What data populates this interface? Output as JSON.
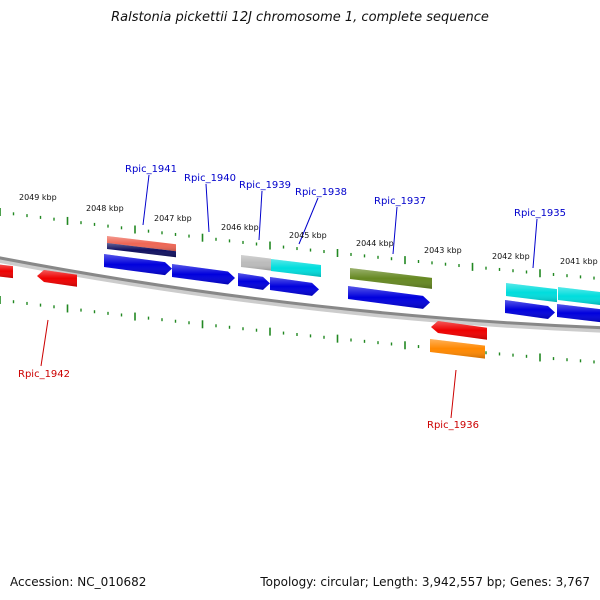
{
  "title": "Ralstonia pickettii 12J chromosome 1, complete sequence",
  "accession": "Accession: NC_010682",
  "summary": "Topology: circular; Length: 3,942,557 bp; Genes: 3,767",
  "colors": {
    "forward_label": "#0000cc",
    "reverse_label": "#cc0000",
    "tick": "#228822",
    "backbone": "#888888",
    "cds_blue": "#0000dd",
    "red": "#ee0000",
    "salmon": "#ee6655",
    "navy": "#101060",
    "gray": "#bbbbbb",
    "cyan": "#00dddd",
    "olive": "#668822",
    "orange": "#ff8800"
  },
  "scale_labels": [
    "2049 kbp",
    "2048 kbp",
    "2047 kbp",
    "2046 kbp",
    "2045 kbp",
    "2044 kbp",
    "2043 kbp",
    "2042 kbp",
    "2041 kbp"
  ],
  "gene_labels": {
    "forward": [
      "Rpic_1941",
      "Rpic_1940",
      "Rpic_1939",
      "Rpic_1938",
      "Rpic_1937",
      "Rpic_1935"
    ],
    "reverse": [
      "Rpic_1942",
      "Rpic_1936"
    ]
  }
}
